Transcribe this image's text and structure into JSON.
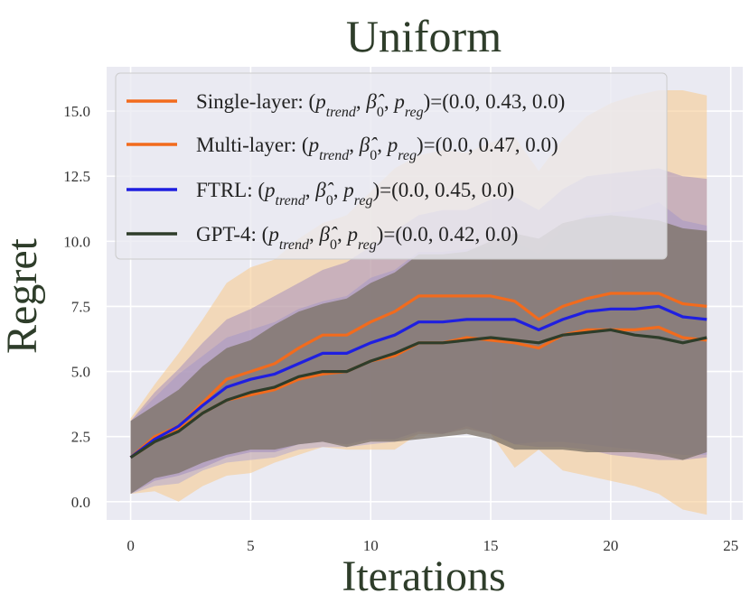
{
  "chart_data": {
    "type": "line",
    "title": "Uniform",
    "xlabel": "Iterations",
    "ylabel": "Regret",
    "xlim": [
      -1,
      25.5
    ],
    "ylim": [
      -0.7,
      16.7
    ],
    "xticks": [
      0,
      5,
      10,
      15,
      20,
      25
    ],
    "xtick_labels": [
      "0",
      "5",
      "10",
      "15",
      "20",
      "25"
    ],
    "yticks": [
      0.0,
      2.5,
      5.0,
      7.5,
      10.0,
      12.5,
      15.0
    ],
    "ytick_labels": [
      "0.0",
      "2.5",
      "5.0",
      "7.5",
      "10.0",
      "12.5",
      "15.0"
    ],
    "grid": true,
    "legend_position": "top-left",
    "x": [
      0,
      1,
      2,
      3,
      4,
      5,
      6,
      7,
      8,
      9,
      10,
      11,
      12,
      13,
      14,
      15,
      16,
      17,
      18,
      19,
      20,
      21,
      22,
      23,
      24
    ],
    "series": [
      {
        "name": "Single-layer",
        "legend_label": "Single-layer: (p_trend, β̂_0, p_reg)=(0.0, 0.43, 0.0)",
        "legend_prefix": "Single-layer: ",
        "legend_suffix": "=(0.0, 0.43, 0.0)",
        "color": "#f26b1d",
        "values": [
          1.7,
          2.5,
          2.9,
          3.8,
          4.7,
          5.0,
          5.3,
          5.9,
          6.4,
          6.4,
          6.9,
          7.3,
          7.9,
          7.9,
          7.9,
          7.9,
          7.7,
          7.0,
          7.5,
          7.8,
          8.0,
          8.0,
          8.0,
          7.6,
          7.5
        ],
        "lower": [
          0.3,
          0.4,
          0.0,
          0.6,
          1.0,
          1.1,
          1.5,
          1.8,
          2.1,
          2.0,
          2.0,
          2.0,
          2.6,
          2.6,
          2.8,
          2.6,
          1.3,
          2.0,
          1.2,
          1.0,
          0.8,
          0.6,
          0.3,
          -0.3,
          -0.5
        ],
        "upper": [
          3.2,
          4.5,
          5.7,
          7.0,
          8.4,
          9.0,
          9.3,
          10.1,
          10.7,
          11.0,
          11.9,
          12.8,
          13.3,
          13.5,
          13.4,
          13.8,
          14.0,
          12.7,
          13.9,
          14.8,
          15.3,
          15.6,
          15.8,
          15.8,
          15.6
        ]
      },
      {
        "name": "Multi-layer",
        "legend_label": "Multi-layer: (p_trend, β̂_0, p_reg)=(0.0, 0.47, 0.0)",
        "legend_prefix": "Multi-layer: ",
        "legend_suffix": "=(0.0, 0.47, 0.0)",
        "color": "#f26b1d",
        "values": [
          1.7,
          2.3,
          2.8,
          3.4,
          3.9,
          4.1,
          4.3,
          4.7,
          4.9,
          5.0,
          5.4,
          5.6,
          6.1,
          6.1,
          6.3,
          6.2,
          6.1,
          5.9,
          6.4,
          6.6,
          6.6,
          6.6,
          6.7,
          6.3,
          6.2
        ],
        "lower": [
          0.3,
          0.6,
          0.7,
          1.2,
          1.5,
          1.6,
          1.7,
          2.0,
          2.1,
          2.1,
          2.2,
          2.3,
          2.6,
          2.6,
          2.9,
          2.6,
          2.2,
          2.3,
          2.3,
          2.2,
          2.1,
          2.0,
          1.9,
          1.8,
          1.8
        ],
        "upper": [
          3.1,
          4.0,
          4.9,
          5.6,
          6.3,
          6.6,
          6.9,
          7.4,
          7.7,
          7.9,
          8.6,
          8.9,
          9.6,
          9.6,
          9.7,
          9.8,
          10.0,
          9.5,
          10.5,
          11.0,
          11.1,
          11.2,
          11.5,
          10.8,
          10.6
        ]
      },
      {
        "name": "FTRL",
        "legend_label": "FTRL: (p_trend, β̂_0, p_reg)=(0.0, 0.45, 0.0)",
        "legend_prefix": "FTRL: ",
        "legend_suffix": "=(0.0, 0.45, 0.0)",
        "color": "#1f1fe0",
        "values": [
          1.7,
          2.4,
          2.9,
          3.7,
          4.4,
          4.7,
          4.9,
          5.3,
          5.7,
          5.7,
          6.1,
          6.4,
          6.9,
          6.9,
          7.0,
          7.0,
          7.0,
          6.6,
          7.0,
          7.3,
          7.4,
          7.4,
          7.5,
          7.1,
          7.0
        ],
        "lower": [
          0.3,
          0.8,
          1.0,
          1.3,
          1.7,
          1.9,
          1.9,
          2.2,
          2.3,
          2.2,
          2.4,
          2.4,
          2.7,
          2.6,
          2.8,
          2.6,
          2.2,
          2.1,
          2.1,
          2.0,
          1.8,
          1.7,
          1.6,
          1.6,
          1.7
        ],
        "upper": [
          3.1,
          4.2,
          5.1,
          6.1,
          7.0,
          7.4,
          7.9,
          8.4,
          8.9,
          9.2,
          9.8,
          10.4,
          11.0,
          11.2,
          11.2,
          11.6,
          11.7,
          11.2,
          12.0,
          12.5,
          12.6,
          12.7,
          12.8,
          12.5,
          12.4
        ]
      },
      {
        "name": "GPT-4",
        "legend_label": "GPT-4: (p_trend, β̂_0, p_reg)=(0.0, 0.42, 0.0)",
        "legend_prefix": "GPT-4: ",
        "legend_suffix": "=(0.0, 0.42, 0.0)",
        "color": "#2e3d2a",
        "values": [
          1.7,
          2.3,
          2.7,
          3.4,
          3.9,
          4.2,
          4.4,
          4.8,
          5.0,
          5.0,
          5.4,
          5.7,
          6.1,
          6.1,
          6.2,
          6.3,
          6.2,
          6.1,
          6.4,
          6.5,
          6.6,
          6.4,
          6.3,
          6.1,
          6.3
        ],
        "lower": [
          0.3,
          0.9,
          1.1,
          1.5,
          1.8,
          2.0,
          2.0,
          2.2,
          2.3,
          2.1,
          2.3,
          2.3,
          2.4,
          2.5,
          2.6,
          2.4,
          2.0,
          2.0,
          2.0,
          1.9,
          1.9,
          1.9,
          1.8,
          1.6,
          1.9
        ],
        "upper": [
          3.1,
          3.7,
          4.3,
          5.2,
          5.9,
          6.2,
          6.8,
          7.3,
          7.6,
          7.8,
          8.4,
          8.8,
          9.5,
          9.5,
          9.6,
          10.0,
          10.3,
          10.1,
          10.7,
          10.9,
          11.0,
          10.9,
          10.8,
          10.5,
          10.4
        ]
      }
    ]
  }
}
